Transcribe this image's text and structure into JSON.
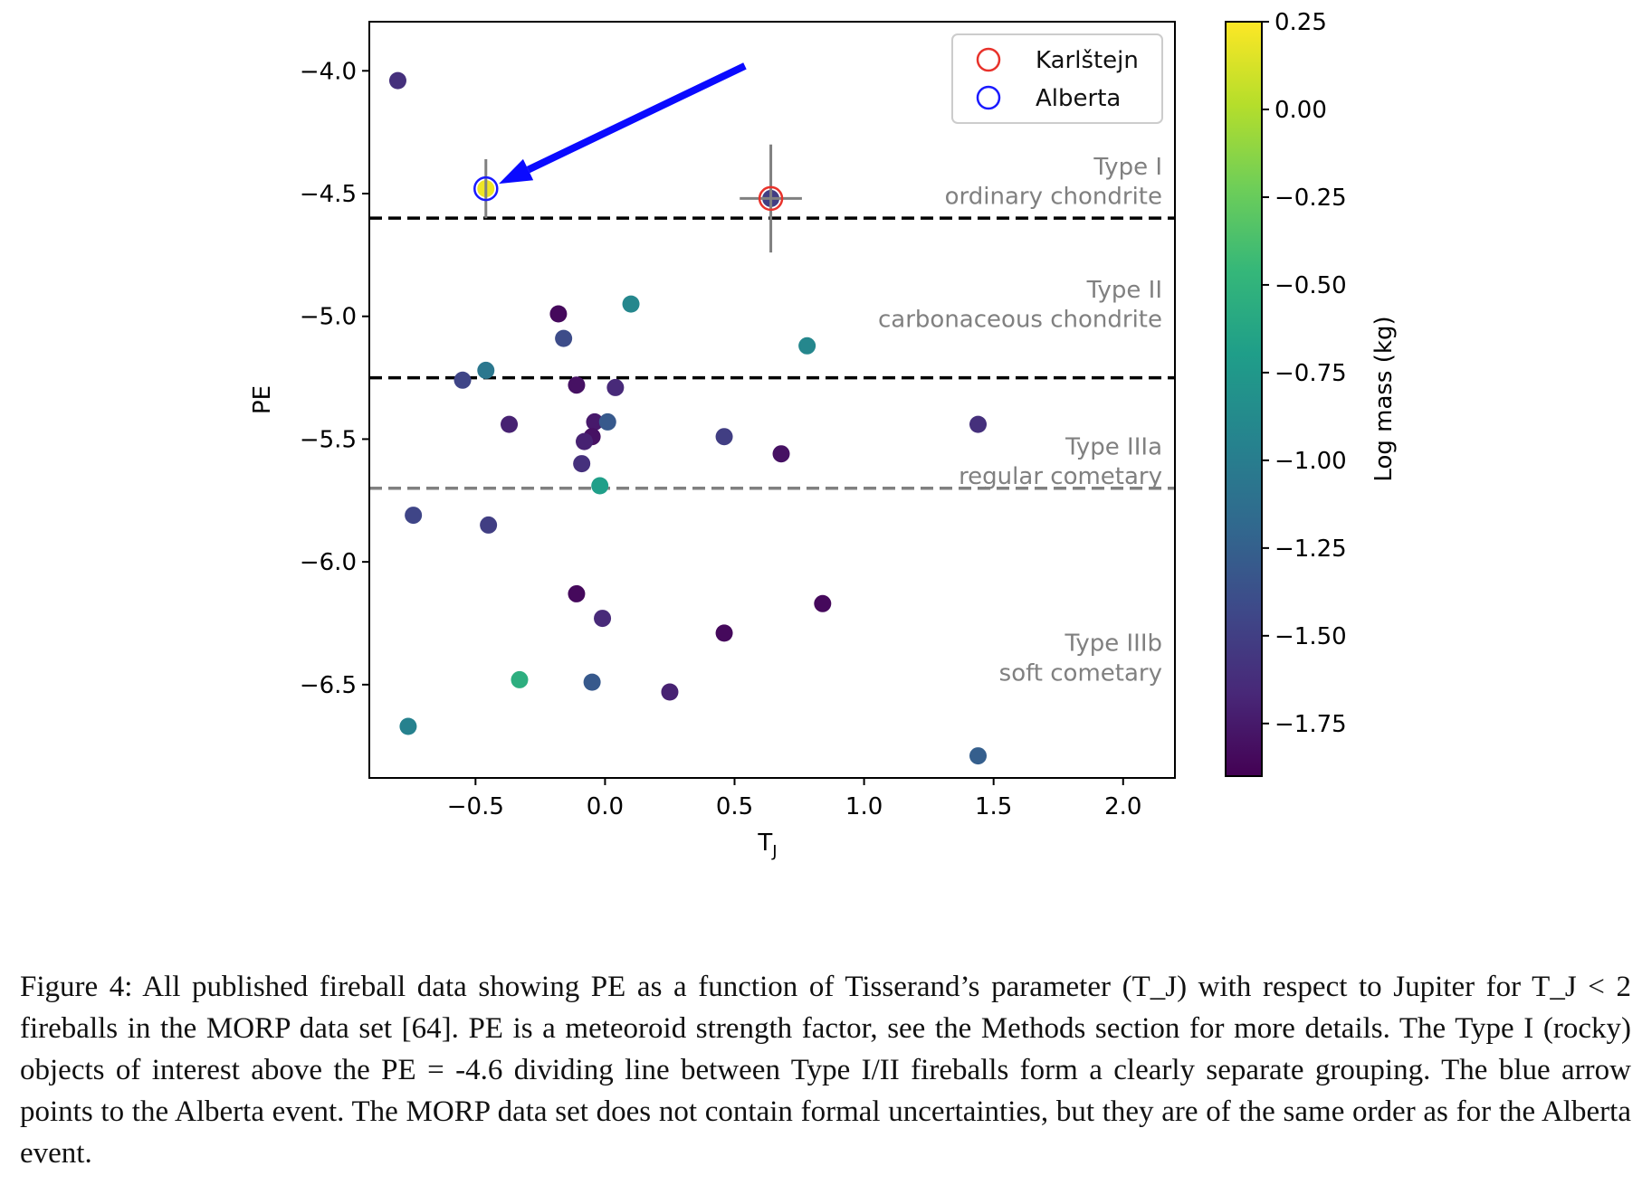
{
  "chart_data": {
    "type": "scatter",
    "xlabel": "T",
    "xlabel_sub": "J",
    "ylabel": "PE",
    "xlim": [
      -0.91,
      2.2
    ],
    "ylim": [
      -6.88,
      -3.8
    ],
    "x_ticks": [
      -0.5,
      0.0,
      0.5,
      1.0,
      1.5,
      2.0
    ],
    "x_tick_labels": [
      "−0.5",
      "0.0",
      "0.5",
      "1.0",
      "1.5",
      "2.0"
    ],
    "y_ticks": [
      -4.0,
      -4.5,
      -5.0,
      -5.5,
      -6.0,
      -6.5
    ],
    "y_tick_labels": [
      "−4.0",
      "−4.5",
      "−5.0",
      "−5.5",
      "−6.0",
      "−6.5"
    ],
    "grid": false,
    "legend_position": "top-right",
    "colorbar": {
      "label": "Log mass (kg)",
      "range": [
        -1.9,
        0.25
      ],
      "ticks": [
        0.25,
        0.0,
        -0.25,
        -0.5,
        -0.75,
        -1.0,
        -1.25,
        -1.5,
        -1.75
      ],
      "tick_labels": [
        "0.25",
        "0.00",
        "−0.25",
        "−0.50",
        "−0.75",
        "−1.00",
        "−1.25",
        "−1.50",
        "−1.75"
      ],
      "colormap": "viridis"
    },
    "points": [
      {
        "x": -0.8,
        "y": -4.04,
        "c": -1.6
      },
      {
        "x": -0.46,
        "y": -4.48,
        "c": 0.2
      },
      {
        "x": 0.64,
        "y": -4.52,
        "c": -1.5
      },
      {
        "x": -0.18,
        "y": -4.99,
        "c": -1.85
      },
      {
        "x": 0.1,
        "y": -4.95,
        "c": -0.9
      },
      {
        "x": -0.16,
        "y": -5.09,
        "c": -1.4
      },
      {
        "x": 0.78,
        "y": -5.12,
        "c": -0.9
      },
      {
        "x": -0.55,
        "y": -5.26,
        "c": -1.45
      },
      {
        "x": -0.46,
        "y": -5.22,
        "c": -1.05
      },
      {
        "x": -0.11,
        "y": -5.28,
        "c": -1.8
      },
      {
        "x": 0.04,
        "y": -5.29,
        "c": -1.65
      },
      {
        "x": -0.37,
        "y": -5.44,
        "c": -1.7
      },
      {
        "x": -0.04,
        "y": -5.43,
        "c": -1.75
      },
      {
        "x": 0.01,
        "y": -5.43,
        "c": -1.3
      },
      {
        "x": 1.44,
        "y": -5.44,
        "c": -1.6
      },
      {
        "x": -0.05,
        "y": -5.49,
        "c": -1.8
      },
      {
        "x": -0.08,
        "y": -5.51,
        "c": -1.7
      },
      {
        "x": 0.46,
        "y": -5.49,
        "c": -1.5
      },
      {
        "x": -0.09,
        "y": -5.6,
        "c": -1.6
      },
      {
        "x": 0.68,
        "y": -5.56,
        "c": -1.8
      },
      {
        "x": -0.02,
        "y": -5.69,
        "c": -0.7
      },
      {
        "x": -0.74,
        "y": -5.81,
        "c": -1.45
      },
      {
        "x": -0.45,
        "y": -5.85,
        "c": -1.5
      },
      {
        "x": -0.11,
        "y": -6.13,
        "c": -1.85
      },
      {
        "x": -0.01,
        "y": -6.23,
        "c": -1.65
      },
      {
        "x": 0.84,
        "y": -6.17,
        "c": -1.85
      },
      {
        "x": 0.46,
        "y": -6.29,
        "c": -1.85
      },
      {
        "x": -0.33,
        "y": -6.48,
        "c": -0.55
      },
      {
        "x": -0.05,
        "y": -6.49,
        "c": -1.3
      },
      {
        "x": 0.25,
        "y": -6.53,
        "c": -1.7
      },
      {
        "x": -0.76,
        "y": -6.67,
        "c": -0.95
      },
      {
        "x": 1.44,
        "y": -6.79,
        "c": -1.25
      }
    ],
    "highlighted": [
      {
        "name": "Karlštejn",
        "x": 0.64,
        "y": -4.52,
        "color": "#e8322b",
        "x_err": 0.12,
        "y_err": 0.22
      },
      {
        "name": "Alberta",
        "x": -0.46,
        "y": -4.48,
        "color": "#1a1aff",
        "x_err": 0.0,
        "y_err": 0.12
      }
    ],
    "legend": [
      "Karlštejn",
      "Alberta"
    ],
    "dividers": [
      {
        "y": -4.6,
        "color": "#000000"
      },
      {
        "y": -5.25,
        "color": "#000000"
      },
      {
        "y": -5.7,
        "color": "#808080"
      }
    ],
    "region_labels": [
      {
        "line1": "Type I",
        "line2": "ordinary chondrite",
        "y_line1": -4.39,
        "y_line2": -4.51
      },
      {
        "line1": "Type II",
        "line2": "carbonaceous chondrite",
        "y_line1": -4.89,
        "y_line2": -5.01
      },
      {
        "line1": "Type IIIa",
        "line2": "regular cometary",
        "y_line1": -5.53,
        "y_line2": -5.65
      },
      {
        "line1": "Type IIIb",
        "line2": "soft cometary",
        "y_line1": -6.33,
        "y_line2": -6.45
      }
    ],
    "arrow": {
      "from": [
        0.54,
        -3.98
      ],
      "to": [
        -0.41,
        -4.46
      ],
      "color": "#0a0aff"
    }
  },
  "caption": "Figure 4: All published fireball data showing PE as a function of Tisserand’s parameter (T_J) with respect to Jupiter for T_J < 2 fireballs in the MORP data set [64]. PE is a meteoroid strength factor, see the Methods section for more details. The Type I (rocky) objects of interest above the PE = -4.6 dividing line between Type I/II fireballs form a clearly separate grouping. The blue arrow points to the Alberta event. The MORP data set does not contain formal uncertainties, but they are of the same order as for the Alberta event."
}
